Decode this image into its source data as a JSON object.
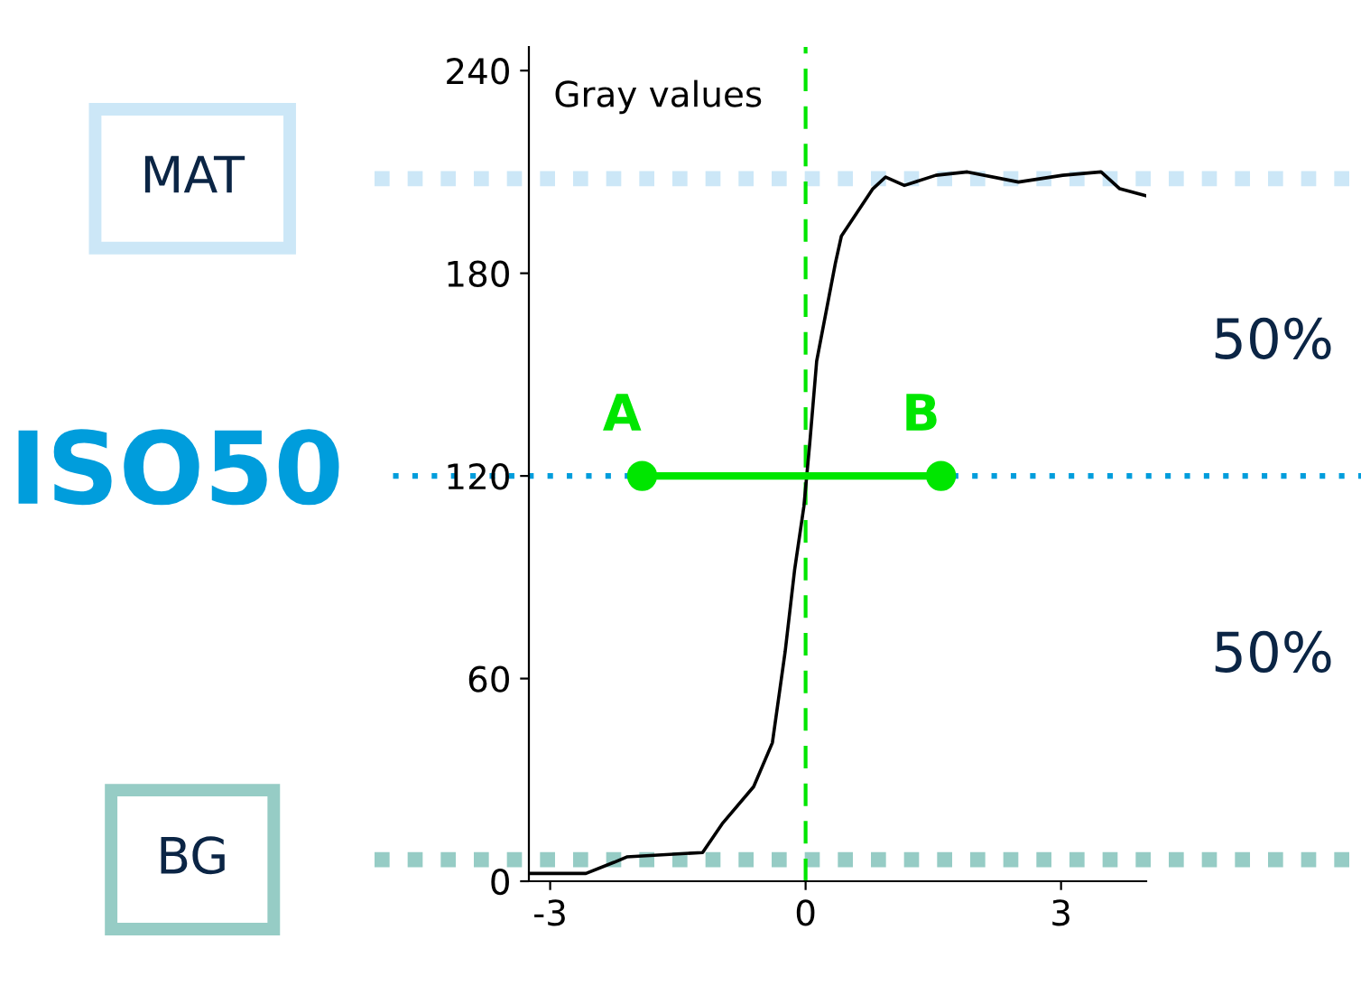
{
  "chart_data": {
    "type": "line",
    "title": "Gray values",
    "xlim": [
      -3.25,
      4.0
    ],
    "xticks": [
      -3,
      0,
      3
    ],
    "ylim": [
      0,
      247
    ],
    "yticks": [
      0,
      60,
      120,
      180,
      240
    ],
    "grid": false,
    "series": [
      {
        "color": "#000000",
        "marker": "none",
        "x": [
          -3.22,
          -2.58,
          -2.25,
          -2.1,
          -1.21,
          -0.98,
          -0.61,
          -0.39,
          -0.24,
          -0.13,
          -0.02,
          0.05,
          0.13,
          0.35,
          0.42,
          0.79,
          0.94,
          1.16,
          1.53,
          1.9,
          2.5,
          3.02,
          3.47,
          3.69,
          3.99
        ],
        "values": [
          2.3,
          2.3,
          5.6,
          7.2,
          8.5,
          17,
          28,
          41,
          68,
          92,
          111,
          130,
          154,
          183,
          191,
          205,
          208.5,
          206,
          209,
          210,
          207,
          209,
          210,
          205,
          203
        ]
      },
      {
        "color": "#00e600",
        "marker": "circle",
        "x": [
          -1.92,
          1.59
        ],
        "values": [
          120,
          120
        ]
      }
    ],
    "ref_lines": [
      {
        "axis": "x",
        "value": 0,
        "color": "#00e600",
        "line_style": "dashed"
      },
      {
        "axis": "y",
        "value": 208,
        "label": "MAT",
        "color": "#cce7f7",
        "line_style": "dotted"
      },
      {
        "axis": "y",
        "value": 120,
        "label": "ISO50",
        "color": "#009ddc",
        "line_style": "dotted"
      },
      {
        "axis": "y",
        "value": 6.4,
        "label": "BG",
        "color": "#96ccc5",
        "line_style": "dotted"
      }
    ],
    "annotations": [
      {
        "text": "A",
        "x": -1.92,
        "y": 120
      },
      {
        "text": "B",
        "x": 1.59,
        "y": 120
      },
      "50%",
      "50%"
    ]
  }
}
